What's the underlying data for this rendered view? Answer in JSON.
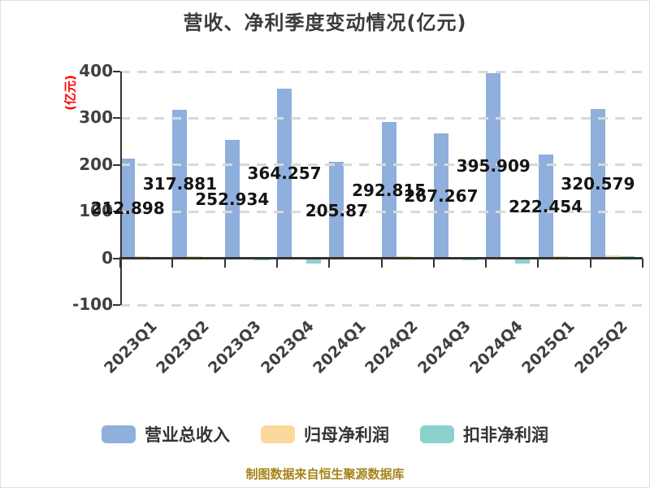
{
  "title": "营收、净利季度变动情况(亿元)",
  "footer": "制图数据来自恒生聚源数据库",
  "colors": {
    "title_text": "#3b3b3b",
    "axis_text": "#404040",
    "y_axis_label": "#ff0000",
    "footer_text": "#a6841b",
    "gridline": "#d9d9d9",
    "axis_line": "#333333",
    "value_label": "#141414"
  },
  "y_axis": {
    "label": "(亿元)",
    "ticks": [
      400,
      300,
      200,
      100,
      0,
      -100
    ]
  },
  "chart_data": {
    "type": "bar",
    "title": "营收、净利季度变动情况(亿元)",
    "ylabel": "(亿元)",
    "ylim": [
      -100,
      400
    ],
    "grid": "dashed horizontal lines at 100-unit intervals, drawn over bars",
    "legend_position": "bottom",
    "categories": [
      "2023Q1",
      "2023Q2",
      "2023Q3",
      "2023Q4",
      "2024Q1",
      "2024Q2",
      "2024Q3",
      "2024Q4",
      "2025Q1",
      "2025Q2"
    ],
    "series": [
      {
        "name": "营业总收入",
        "color": "#8fafdc",
        "values": [
          212.898,
          317.881,
          252.934,
          364.257,
          205.87,
          292.815,
          267.267,
          395.909,
          222.454,
          320.579
        ],
        "labels": [
          "212.898",
          "317.881",
          "252.934",
          "364.257",
          "205.87",
          "292.815",
          "267.267",
          "395.909",
          "222.454",
          "320.579"
        ]
      },
      {
        "name": "归母净利润",
        "color": "#fbd99c",
        "values": [
          5,
          4,
          3,
          0.8,
          1.5,
          5,
          0.8,
          0.8,
          4,
          5.5
        ]
      },
      {
        "name": "扣非净利润",
        "color": "#8bd2cf",
        "values": [
          3,
          1,
          -2,
          -9,
          1.5,
          2,
          -1,
          -9,
          1,
          4
        ]
      }
    ]
  }
}
